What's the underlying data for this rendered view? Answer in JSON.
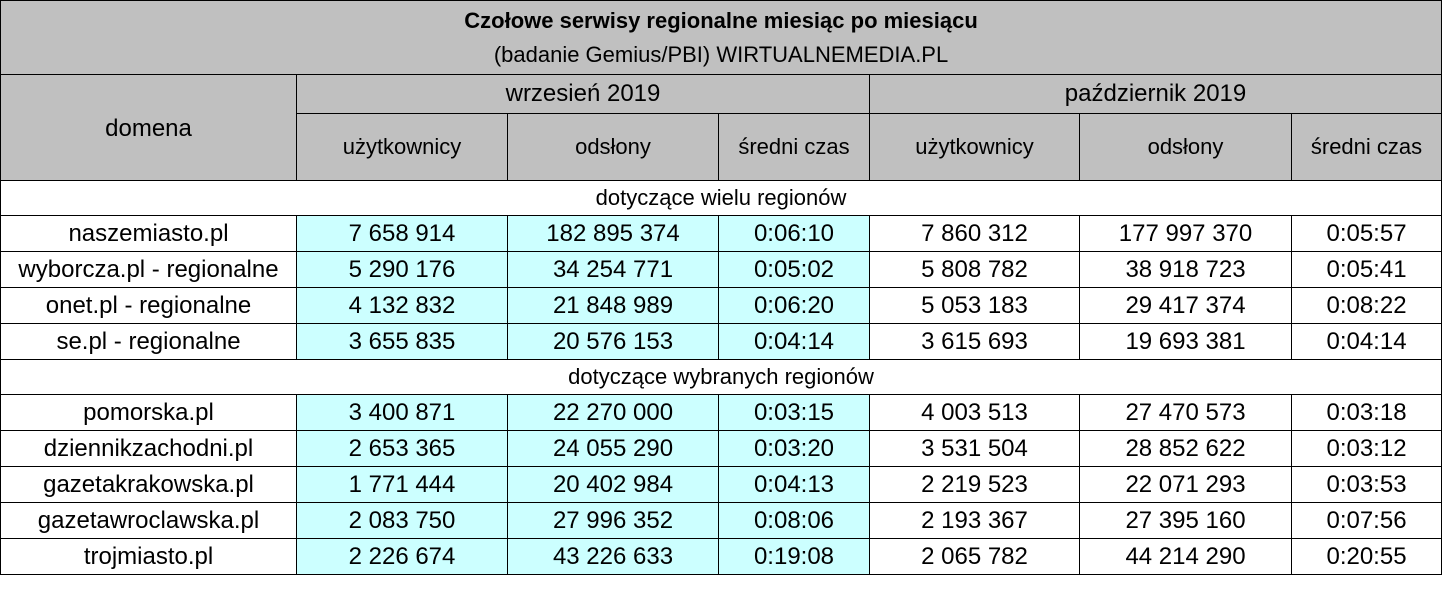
{
  "title": "Czołowe serwisy regionalne miesiąc po miesiącu",
  "subtitle": "(badanie Gemius/PBI) WIRTUALNEMEDIA.PL",
  "header": {
    "domain_label": "domena",
    "periods": [
      "wrzesień 2019",
      "październik 2019"
    ],
    "metrics": [
      "użytkownicy",
      "odsłony",
      "średni czas"
    ]
  },
  "groups": [
    {
      "label": "dotyczące wielu regionów",
      "rows": [
        {
          "domain": "naszemiasto.pl",
          "cells": [
            "7 658 914",
            "182 895 374",
            "0:06:10",
            "7 860 312",
            "177 997 370",
            "0:05:57"
          ]
        },
        {
          "domain": "wyborcza.pl - regionalne",
          "cells": [
            "5 290 176",
            "34 254 771",
            "0:05:02",
            "5 808 782",
            "38 918 723",
            "0:05:41"
          ]
        },
        {
          "domain": "onet.pl - regionalne",
          "cells": [
            "4 132 832",
            "21 848 989",
            "0:06:20",
            "5 053 183",
            "29 417 374",
            "0:08:22"
          ]
        },
        {
          "domain": "se.pl - regionalne",
          "cells": [
            "3 655 835",
            "20 576 153",
            "0:04:14",
            "3 615 693",
            "19 693 381",
            "0:04:14"
          ]
        }
      ]
    },
    {
      "label": "dotyczące wybranych regionów",
      "rows": [
        {
          "domain": "pomorska.pl",
          "cells": [
            "3 400 871",
            "22 270 000",
            "0:03:15",
            "4 003 513",
            "27 470 573",
            "0:03:18"
          ]
        },
        {
          "domain": "dziennikzachodni.pl",
          "cells": [
            "2 653 365",
            "24 055 290",
            "0:03:20",
            "3 531 504",
            "28 852 622",
            "0:03:12"
          ]
        },
        {
          "domain": "gazetakrakowska.pl",
          "cells": [
            "1 771 444",
            "20 402 984",
            "0:04:13",
            "2 219 523",
            "22 071 293",
            "0:03:53"
          ]
        },
        {
          "domain": "gazetawroclawska.pl",
          "cells": [
            "2 083 750",
            "27 996 352",
            "0:08:06",
            "2 193 367",
            "27 395 160",
            "0:07:56"
          ]
        },
        {
          "domain": "trojmiasto.pl",
          "cells": [
            "2 226 674",
            "43 226 633",
            "0:19:08",
            "2 065 782",
            "44 214 290",
            "0:20:55"
          ]
        }
      ]
    }
  ],
  "colors": {
    "header_bg": "#c0c0c0",
    "highlight_bg": "#ccffff",
    "plain_bg": "#ffffff",
    "border": "#000000"
  }
}
